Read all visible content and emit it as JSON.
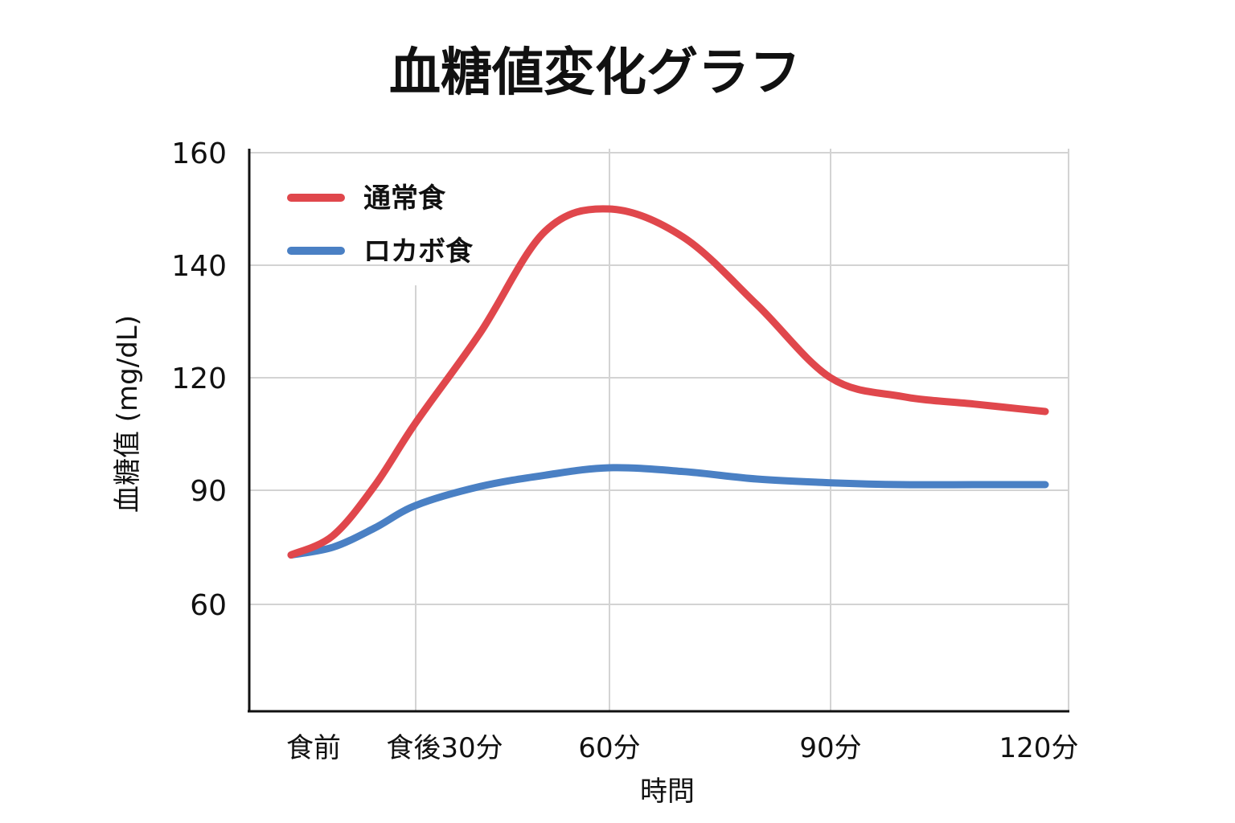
{
  "chart_data": {
    "type": "line",
    "title": "血糖値変化グラフ",
    "xlabel": "時問",
    "ylabel": "血糖值 (mg/dL)",
    "categories": [
      "食前",
      "食後30分",
      "60分",
      "90分",
      "120分"
    ],
    "y_ticks": [
      "160",
      "140",
      "120",
      "90",
      "60"
    ],
    "series": [
      {
        "name": "通常食",
        "color": "#e0474c",
        "x": [
          0,
          10,
          20,
          30,
          40,
          50,
          60,
          70,
          80,
          90,
          100,
          110,
          120
        ],
        "values": [
          73,
          78,
          91,
          108,
          128,
          146,
          150,
          145,
          133,
          120,
          115,
          113,
          111
        ]
      },
      {
        "name": "ロカボ食",
        "color": "#4a80c4",
        "x": [
          0,
          10,
          20,
          30,
          40,
          50,
          60,
          70,
          80,
          90,
          100,
          110,
          120
        ],
        "values": [
          73,
          75,
          80,
          86,
          91,
          94,
          96,
          95,
          93,
          92,
          91.5,
          91.5,
          91.5
        ]
      }
    ],
    "grid": true,
    "legend_position": "top-left"
  }
}
